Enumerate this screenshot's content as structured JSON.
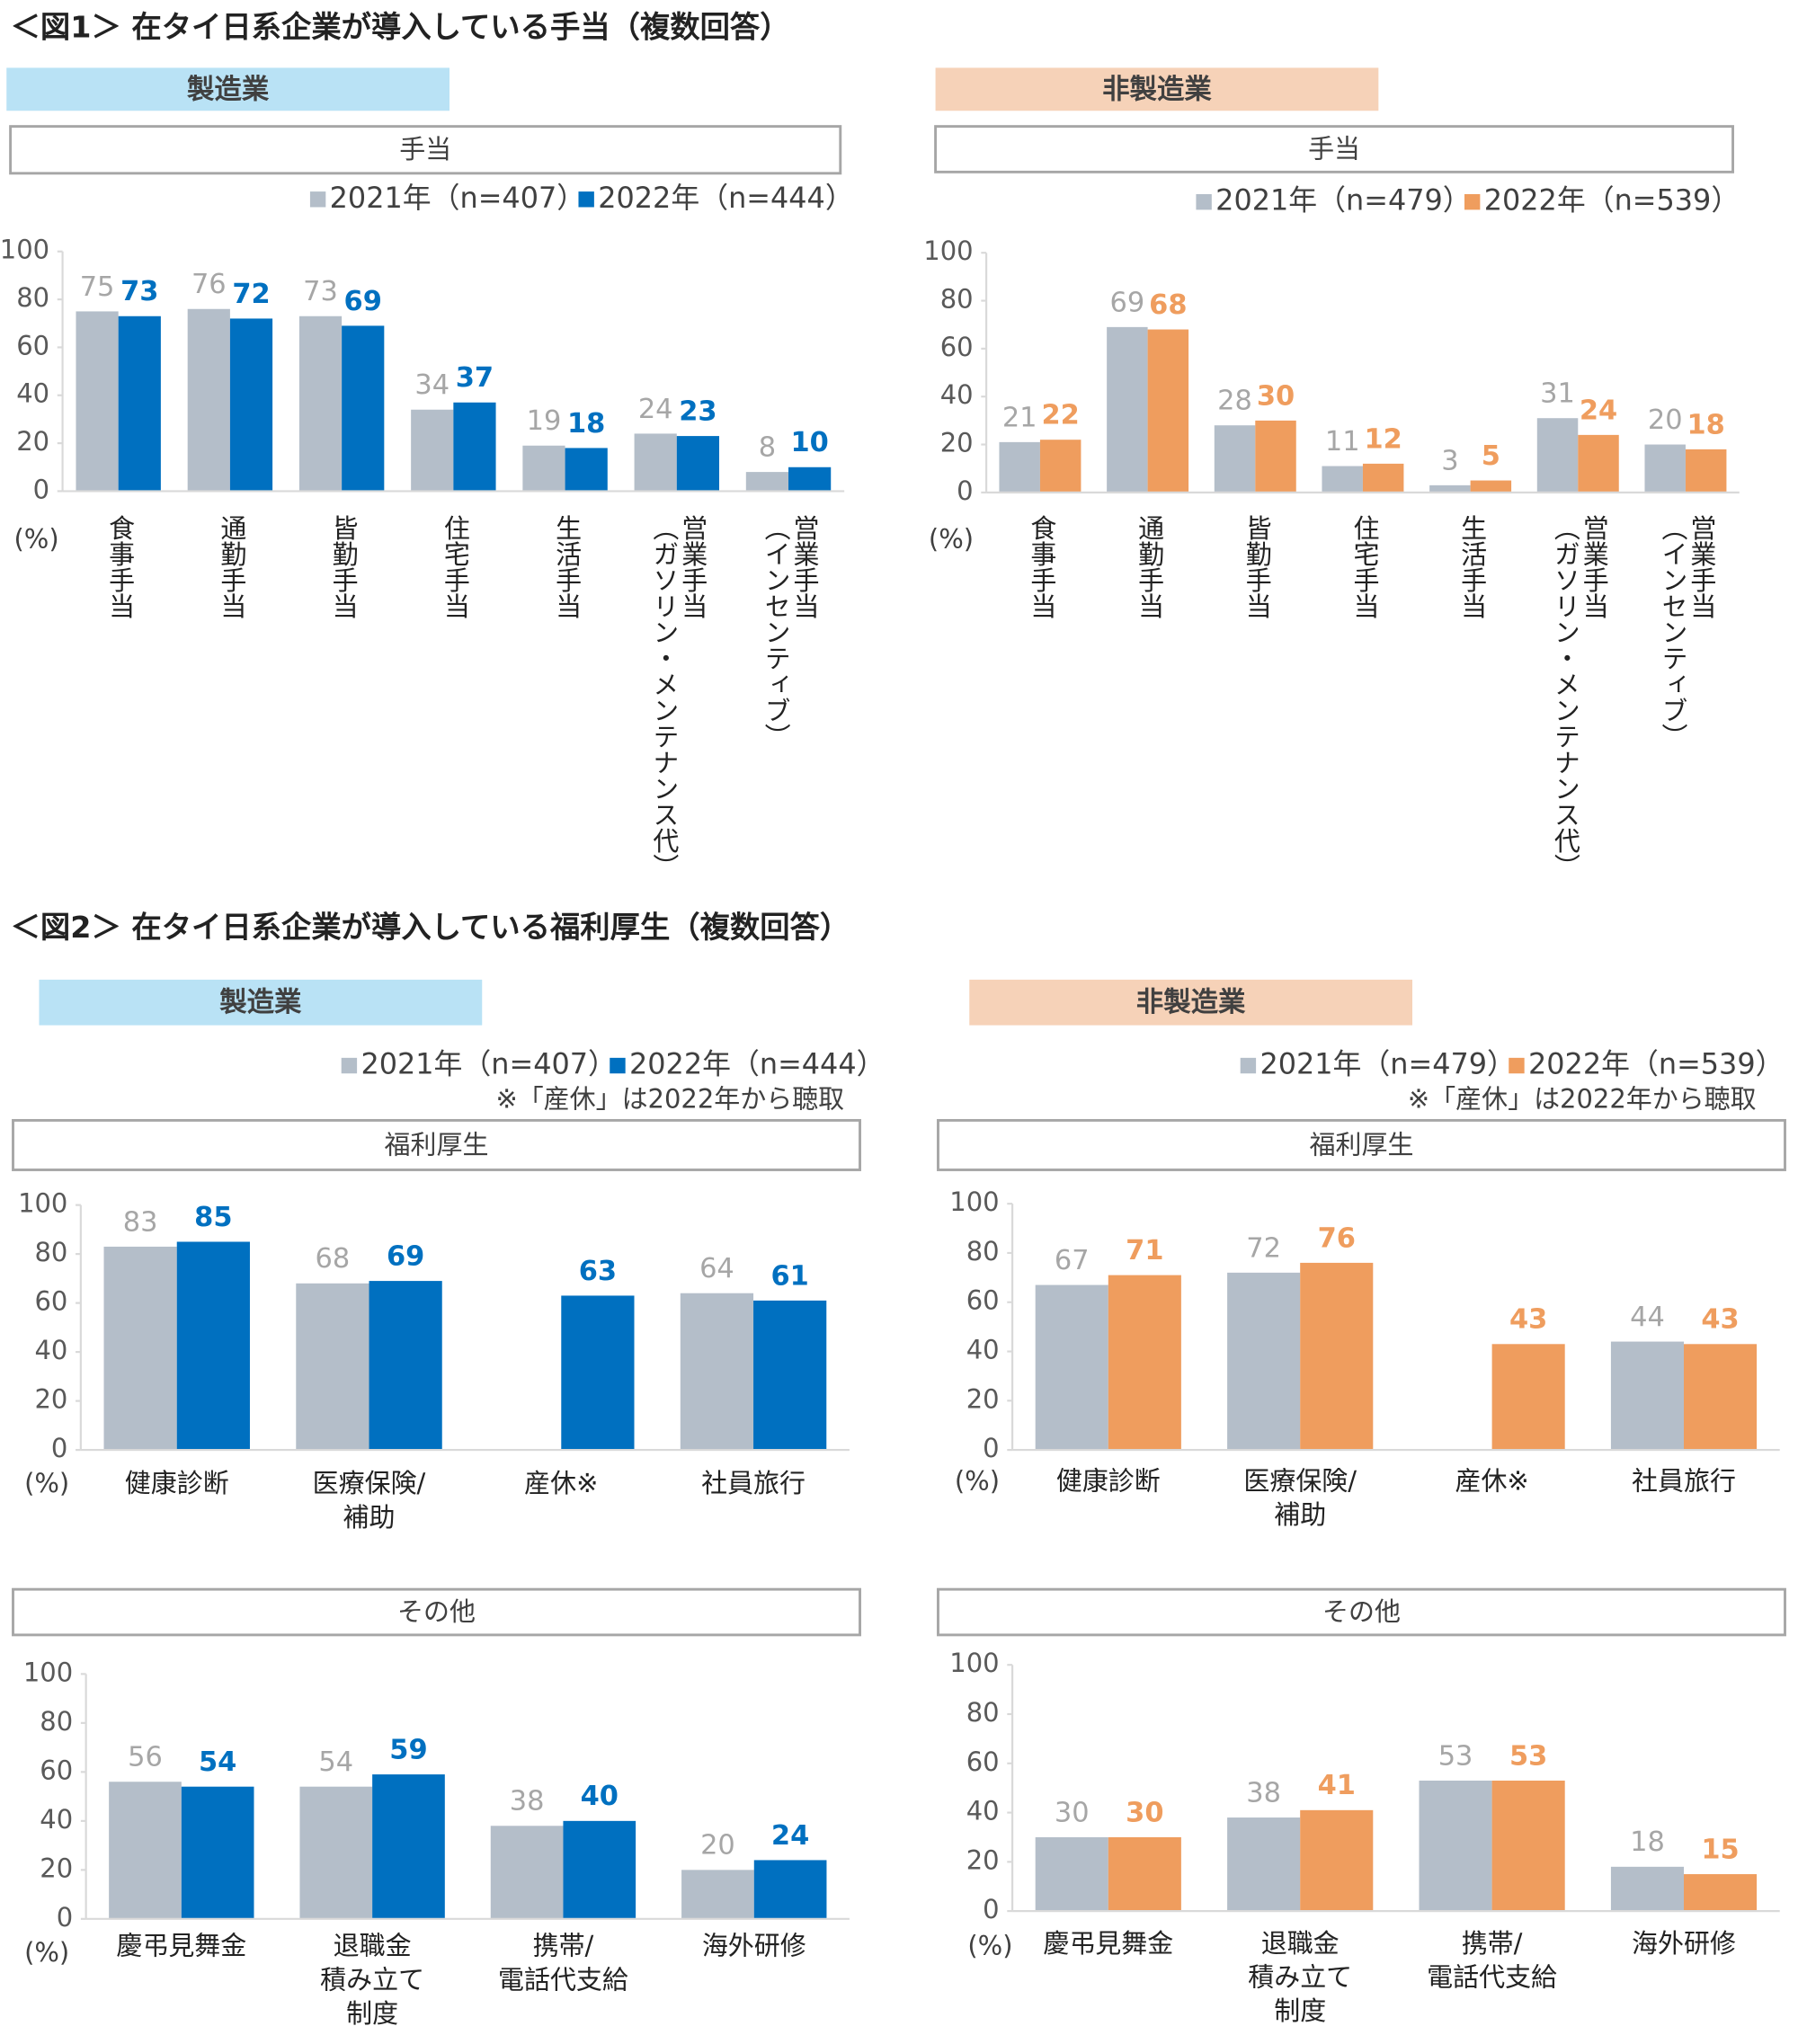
{
  "figure_titles": [
    "＜図1＞ 在タイ日系企業が導入している手当（複数回答）",
    "＜図2＞ 在タイ日系企業が導入している福利厚生（複数回答）"
  ],
  "chart_data": [
    {
      "type": "bar",
      "panel": "製造業",
      "title": "手当",
      "y_label": "(%)",
      "legend": true,
      "categories": [
        "食事手当",
        "通勤手当",
        "皆勤手当",
        "住宅手当",
        "生活手当",
        "営業手当\n（ガソリン・メンテナンス代）",
        "営業手当\n（インセンティブ）"
      ],
      "series": [
        {
          "name": "2021年（n=407）",
          "color": "#b4bec9",
          "values": [
            75,
            76,
            73,
            34,
            19,
            24,
            8
          ]
        },
        {
          "name": "2022年（n=444）",
          "color": "#0070c0",
          "values": [
            73,
            72,
            69,
            37,
            18,
            23,
            10
          ]
        }
      ],
      "ylim": [
        0,
        100
      ],
      "yticks": [
        0,
        20,
        40,
        60,
        80,
        100
      ],
      "grid": false
    },
    {
      "type": "bar",
      "panel": "非製造業",
      "title": "手当",
      "y_label": "(%)",
      "legend": true,
      "categories": [
        "食事手当",
        "通勤手当",
        "皆勤手当",
        "住宅手当",
        "生活手当",
        "営業手当\n（ガソリン・メンテナンス代）",
        "営業手当\n（インセンティブ）"
      ],
      "series": [
        {
          "name": "2021年（n=479）",
          "color": "#b4bec9",
          "values": [
            21,
            69,
            28,
            11,
            3,
            31,
            20
          ]
        },
        {
          "name": "2022年（n=539）",
          "color": "#ef9d5e",
          "values": [
            22,
            68,
            30,
            12,
            5,
            24,
            18
          ]
        }
      ],
      "ylim": [
        0,
        100
      ],
      "yticks": [
        0,
        20,
        40,
        60,
        80,
        100
      ],
      "grid": false
    },
    {
      "type": "bar",
      "panel": "製造業",
      "title": "福利厚生",
      "note": "※「産休」は2022年から聴取",
      "y_label": "(%)",
      "legend": true,
      "categories": [
        "健康診断",
        "医療保険/\n補助",
        "産休※",
        "社員旅行"
      ],
      "series": [
        {
          "name": "2021年（n=407）",
          "color": "#b4bec9",
          "values": [
            83,
            68,
            null,
            64
          ]
        },
        {
          "name": "2022年（n=444）",
          "color": "#0070c0",
          "values": [
            85,
            69,
            63,
            61
          ]
        }
      ],
      "ylim": [
        0,
        100
      ],
      "yticks": [
        0,
        20,
        40,
        60,
        80,
        100
      ],
      "grid": false
    },
    {
      "type": "bar",
      "panel": "非製造業",
      "title": "福利厚生",
      "note": "※「産休」は2022年から聴取",
      "y_label": "(%)",
      "legend": true,
      "categories": [
        "健康診断",
        "医療保険/\n補助",
        "産休※",
        "社員旅行"
      ],
      "series": [
        {
          "name": "2021年（n=479）",
          "color": "#b4bec9",
          "values": [
            67,
            72,
            null,
            44
          ]
        },
        {
          "name": "2022年（n=539）",
          "color": "#ef9d5e",
          "values": [
            71,
            76,
            43,
            43
          ]
        }
      ],
      "ylim": [
        0,
        100
      ],
      "yticks": [
        0,
        20,
        40,
        60,
        80,
        100
      ],
      "grid": false
    },
    {
      "type": "bar",
      "title": "その他",
      "y_label": "(%)",
      "legend": false,
      "categories": [
        "慶弔見舞金",
        "退職金\n積み立て\n制度",
        "携帯/\n電話代支給",
        "海外研修"
      ],
      "series": [
        {
          "color": "#b4bec9",
          "values": [
            56,
            54,
            38,
            20
          ]
        },
        {
          "color": "#0070c0",
          "values": [
            54,
            59,
            40,
            24
          ]
        }
      ],
      "ylim": [
        0,
        100
      ],
      "yticks": [
        0,
        20,
        40,
        60,
        80,
        100
      ],
      "grid": false
    },
    {
      "type": "bar",
      "title": "その他",
      "y_label": "(%)",
      "legend": false,
      "categories": [
        "慶弔見舞金",
        "退職金\n積み立て\n制度",
        "携帯/\n電話代支給",
        "海外研修"
      ],
      "series": [
        {
          "color": "#b4bec9",
          "values": [
            30,
            38,
            53,
            18
          ]
        },
        {
          "color": "#ef9d5e",
          "values": [
            30,
            41,
            53,
            15
          ]
        }
      ],
      "ylim": [
        0,
        100
      ],
      "yticks": [
        0,
        20,
        40,
        60,
        80,
        100
      ],
      "grid": false
    }
  ]
}
